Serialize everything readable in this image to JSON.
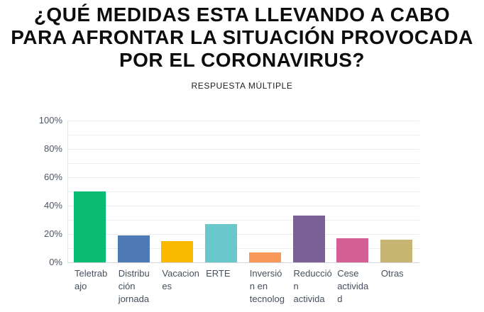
{
  "header": {
    "title": "¿QUÉ MEDIDAS ESTA LLEVANDO A CABO\nPARA AFRONTAR LA SITUACIÓN PROVOCADA\nPOR EL CORONAVIRUS?",
    "subtitle": "RESPUESTA MÚLTIPLE"
  },
  "chart_data": {
    "type": "bar",
    "title": "¿QUÉ MEDIDAS ESTA LLEVANDO A CABO PARA AFRONTAR LA SITUACIÓN PROVOCADA POR EL CORONAVIRUS?",
    "subtitle": "RESPUESTA MÚLTIPLE",
    "categories": [
      "Teletrabajo",
      "Distribución jornada",
      "Vacaciones",
      "ERTE",
      "Inversión en tecnolog",
      "Reducción activida",
      "Cese actividad",
      "Otras"
    ],
    "category_display_lines": [
      "Teletrab\najo",
      "Distribu\nción\njornada",
      "Vacacion\nes",
      "ERTE",
      "Inversió\nn en\ntecnolog",
      "Reducció\nn\nactivida",
      "Cese\nactivida\nd",
      "Otras"
    ],
    "category_slugs": [
      "teletrabajo",
      "distribucion-jornada",
      "vacaciones",
      "erte",
      "inversion-en-tecnologia",
      "reduccion-actividad",
      "cese-actividad",
      "otras"
    ],
    "values": [
      50,
      19,
      15,
      27,
      7,
      33,
      17,
      16
    ],
    "unit": "%",
    "bar_colors": [
      "#0abc72",
      "#4d7ab4",
      "#fbba00",
      "#6ac8cb",
      "#f8995a",
      "#7b5f97",
      "#d45f94",
      "#c6b573"
    ],
    "xlabel": "",
    "ylabel": "",
    "ylim": [
      0,
      100
    ],
    "yticks": [
      "0%",
      "20%",
      "40%",
      "60%",
      "80%",
      "100%"
    ],
    "grid": "horizontal minor gridlines every 10%",
    "legend": "none"
  },
  "colors": {
    "background": "#ffffff",
    "title_text": "#0d0d0d",
    "axis_tick_text": "#4d5665",
    "category_label_text": "#46505e",
    "gridline": "#ebebee",
    "axis_line": "#d5d5d9"
  }
}
